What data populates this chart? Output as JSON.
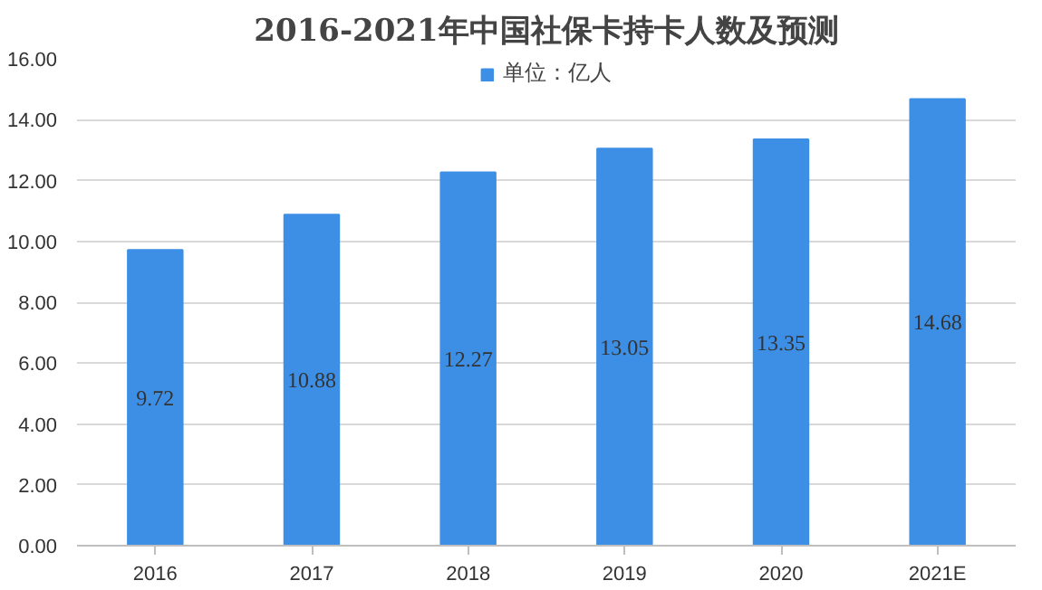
{
  "chart_data": {
    "type": "bar",
    "title": "2016-2021年中国社保卡持卡人数及预测",
    "categories": [
      "2016",
      "2017",
      "2018",
      "2019",
      "2020",
      "2021E"
    ],
    "series": [
      {
        "name": "单位：亿人",
        "color": "#3d8fe6",
        "values": [
          9.72,
          10.88,
          12.27,
          13.05,
          13.35,
          14.68
        ]
      }
    ],
    "ylim": [
      0,
      16
    ],
    "yticks": [
      {
        "value": 0,
        "label": "0.00"
      },
      {
        "value": 2,
        "label": "2.00"
      },
      {
        "value": 4,
        "label": "4.00"
      },
      {
        "value": 6,
        "label": "6.00"
      },
      {
        "value": 8,
        "label": "8.00"
      },
      {
        "value": 10,
        "label": "10.00"
      },
      {
        "value": 12,
        "label": "12.00"
      },
      {
        "value": 14,
        "label": "14.00"
      },
      {
        "value": 16,
        "label": "16.00"
      }
    ],
    "grid": "y",
    "legend": "top",
    "data_labels": true
  }
}
